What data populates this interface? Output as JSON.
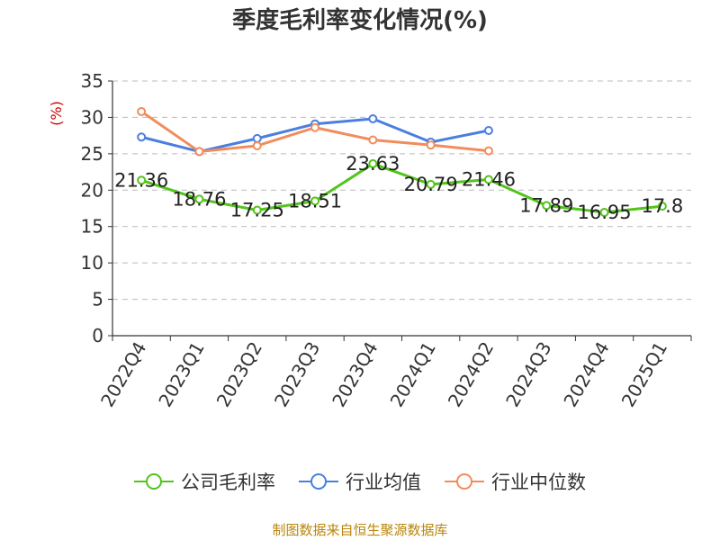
{
  "source": "制图数据来自恒生聚源数据库",
  "chart_data": {
    "type": "line",
    "title": "季度毛利率变化情况(%)",
    "ylabel": "(%)",
    "xlabel": "",
    "ylim": [
      0,
      35
    ],
    "yticks": [
      0,
      5,
      10,
      15,
      20,
      25,
      30,
      35
    ],
    "grid": true,
    "legend": "bottom",
    "categories": [
      "2022Q4",
      "2023Q1",
      "2023Q2",
      "2023Q3",
      "2023Q4",
      "2024Q1",
      "2024Q2",
      "2024Q3",
      "2024Q4",
      "2025Q1"
    ],
    "series": [
      {
        "name": "公司毛利率",
        "color": "#52c41a",
        "values": [
          21.36,
          18.76,
          17.25,
          18.51,
          23.63,
          20.79,
          21.46,
          17.89,
          16.95,
          17.8
        ],
        "labels": [
          "21.36",
          "18.76",
          "17.25",
          "18.51",
          "23.63",
          "20.79",
          "21.46",
          "17.89",
          "16.95",
          "17.8"
        ]
      },
      {
        "name": "行业均值",
        "color": "#4a7fe0",
        "values": [
          27.3,
          25.3,
          27.1,
          29.1,
          29.8,
          26.6,
          28.2,
          null,
          null,
          null
        ]
      },
      {
        "name": "行业中位数",
        "color": "#f28c5c",
        "values": [
          30.8,
          25.3,
          26.1,
          28.6,
          26.9,
          26.2,
          25.4,
          null,
          null,
          null
        ]
      }
    ]
  }
}
